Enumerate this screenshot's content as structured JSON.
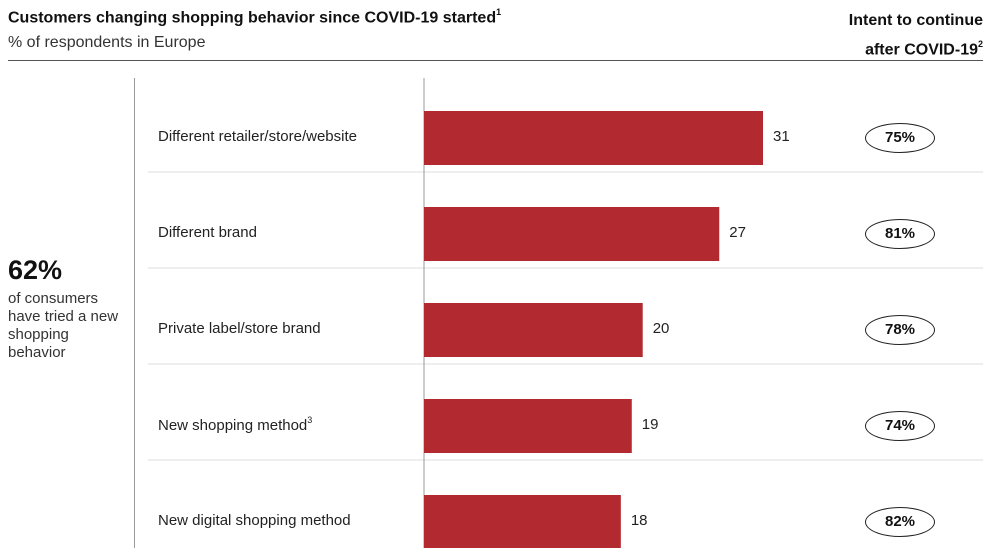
{
  "header": {
    "title": "Customers changing shopping behavior since COVID-19 started",
    "title_footnote": "1",
    "subtitle": "% of respondents in Europe",
    "intent_line1": "Intent to continue",
    "intent_line2": "after COVID-19",
    "intent_footnote": "2"
  },
  "callout": {
    "value": "62%",
    "text": "of consumers have tried a new shopping behavior"
  },
  "colors": {
    "bar": "#b22a30",
    "separator": "#dcdcdc",
    "axis": "#999999"
  },
  "chart_data": {
    "type": "bar",
    "orientation": "horizontal",
    "categories": [
      "Different retailer/store/website",
      "Different brand",
      "Private label/store brand",
      "New shopping method",
      "New digital shopping method"
    ],
    "category_footnotes": [
      "",
      "",
      "",
      "3",
      ""
    ],
    "values": [
      31,
      27,
      20,
      19,
      18
    ],
    "value_labels": [
      "31",
      "27",
      "20",
      "19",
      "18"
    ],
    "intent_to_continue": [
      "75%",
      "81%",
      "78%",
      "74%",
      "82%"
    ],
    "xlim": [
      0,
      31
    ]
  }
}
